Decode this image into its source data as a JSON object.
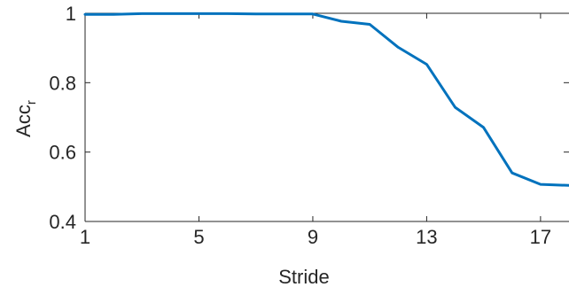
{
  "chart_data": {
    "type": "line",
    "title": "",
    "xlabel": "Stride",
    "ylabel": "Acc",
    "ylabel_sub": "r",
    "xlim": [
      1,
      18
    ],
    "ylim": [
      0.4,
      1
    ],
    "xticks": [
      1,
      5,
      9,
      13,
      17
    ],
    "yticks": [
      0.4,
      0.6,
      0.8,
      1
    ],
    "xtick_labels": [
      "1",
      "5",
      "9",
      "13",
      "17"
    ],
    "ytick_labels": [
      "0.4",
      "0.6",
      "0.8",
      "1"
    ],
    "grid": false,
    "series_color": "#0072BD",
    "series": [
      {
        "x": [
          1,
          2,
          3,
          4,
          5,
          6,
          7,
          8,
          9,
          10,
          11,
          12,
          13,
          14,
          15,
          16,
          17,
          18
        ],
        "values": [
          0.997,
          0.997,
          0.999,
          0.999,
          0.999,
          0.999,
          0.998,
          0.998,
          0.998,
          0.977,
          0.968,
          0.902,
          0.853,
          0.729,
          0.671,
          0.54,
          0.507,
          0.504
        ]
      }
    ]
  }
}
